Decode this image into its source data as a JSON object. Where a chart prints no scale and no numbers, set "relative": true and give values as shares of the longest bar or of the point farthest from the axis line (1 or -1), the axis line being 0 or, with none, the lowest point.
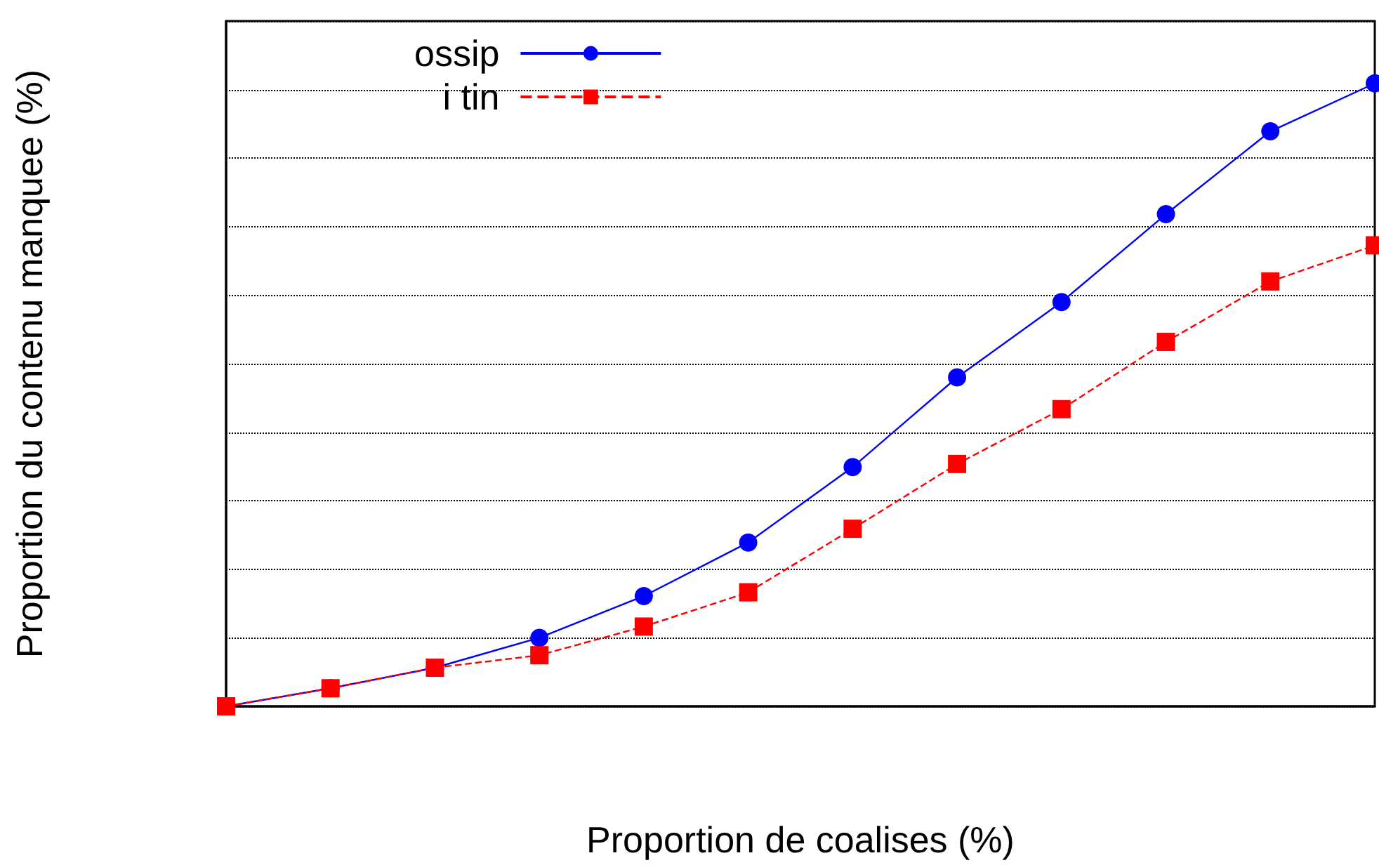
{
  "chart_data": {
    "type": "line",
    "relative": true,
    "xlabel": "Proportion de coalises (%)",
    "ylabel": "Proportion du contenu manquee (%)",
    "categories": [
      null,
      null,
      null,
      null,
      null,
      null,
      null,
      null,
      null,
      null,
      null,
      null
    ],
    "series": [
      {
        "name": "ossip",
        "color": "#0000ff",
        "marker": "circle",
        "line_style": "solid",
        "values": [
          0,
          0.029,
          0.062,
          0.11,
          0.177,
          0.263,
          0.384,
          0.528,
          0.649,
          0.79,
          0.923,
          1
        ]
      },
      {
        "name": "i tin",
        "color": "#ff0000",
        "marker": "square",
        "line_style": "dashed",
        "values": [
          0,
          0.029,
          0.062,
          0.082,
          0.128,
          0.183,
          0.285,
          0.389,
          0.477,
          0.585,
          0.682,
          0.74
        ]
      }
    ],
    "grid": "y",
    "legend": "top"
  }
}
